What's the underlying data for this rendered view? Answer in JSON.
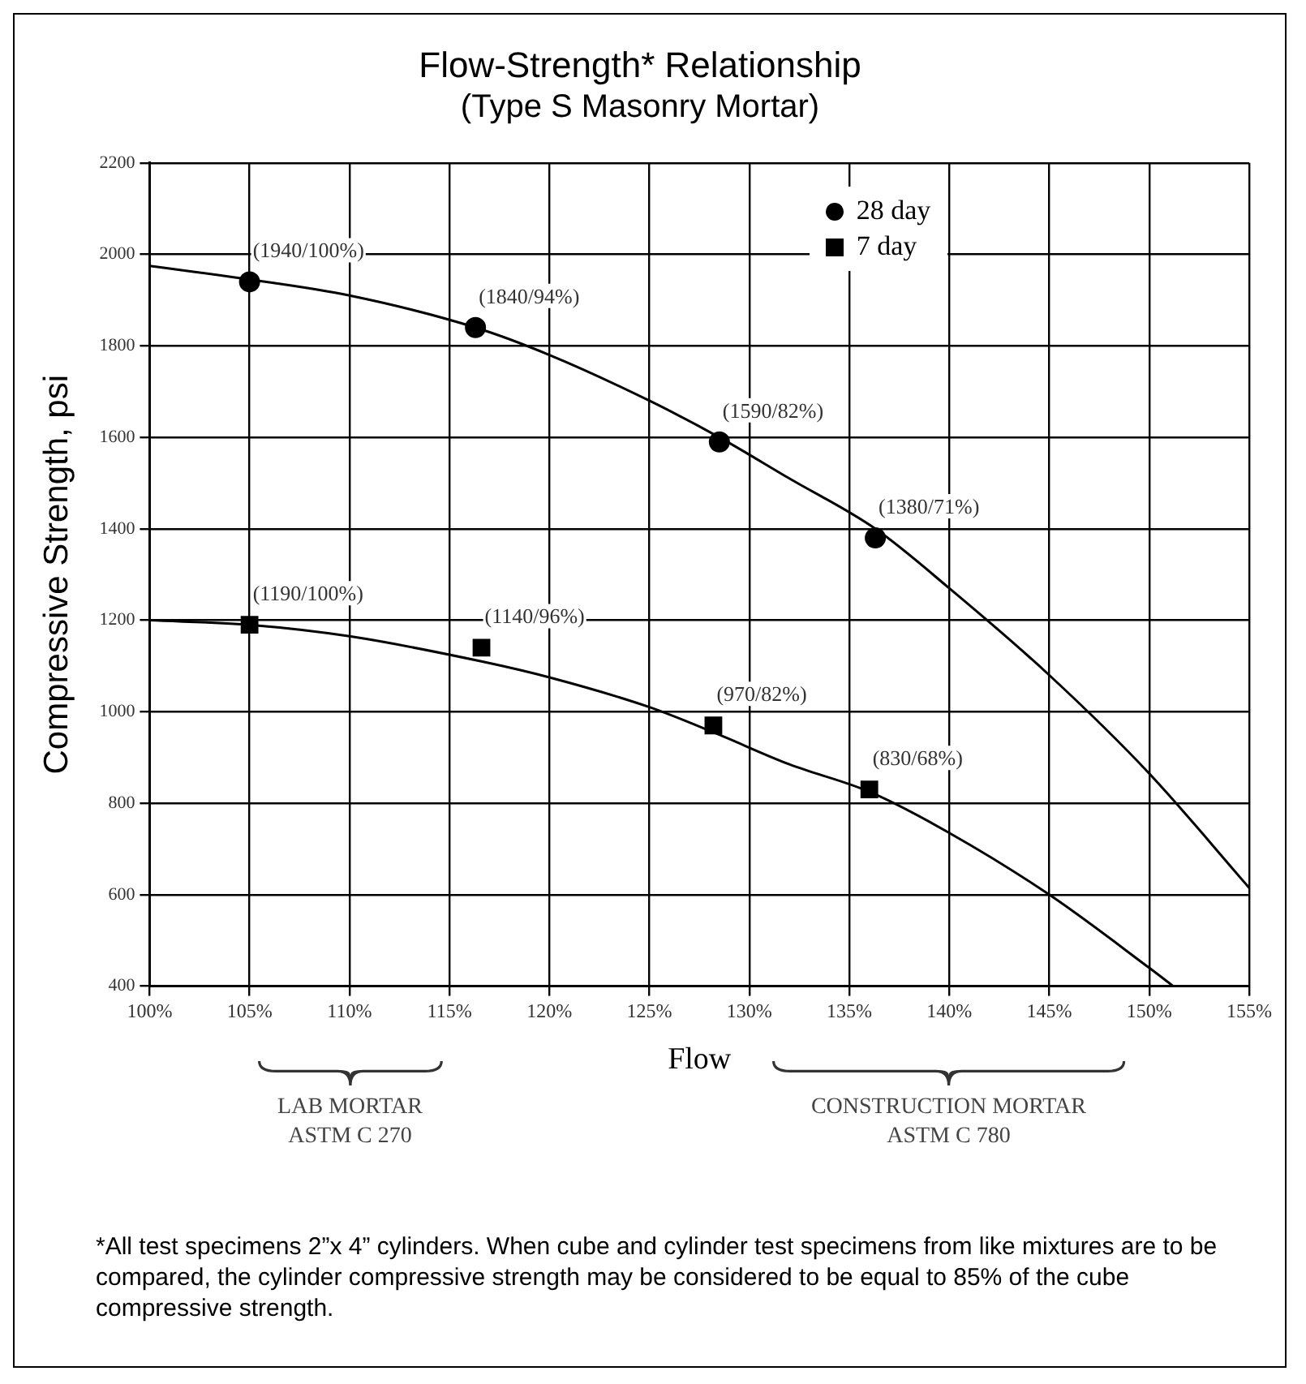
{
  "chart_data": {
    "type": "scatter",
    "title": "Flow-Strength* Relationship",
    "subtitle": "(Type S Masonry Mortar)",
    "xlabel": "Flow",
    "ylabel": "Compressive Strength, psi",
    "xlim": [
      100,
      155
    ],
    "xticks": [
      {
        "value": 100,
        "label": "100%"
      },
      {
        "value": 105,
        "label": "105%"
      },
      {
        "value": 110,
        "label": "110%"
      },
      {
        "value": 115,
        "label": "115%"
      },
      {
        "value": 120,
        "label": "120%"
      },
      {
        "value": 125,
        "label": "125%"
      },
      {
        "value": 130,
        "label": "130%"
      },
      {
        "value": 135,
        "label": "135%"
      },
      {
        "value": 140,
        "label": "140%"
      },
      {
        "value": 145,
        "label": "145%"
      },
      {
        "value": 150,
        "label": "150%"
      },
      {
        "value": 155,
        "label": "155%"
      }
    ],
    "ylim": [
      400,
      2200
    ],
    "yticks": [
      400,
      600,
      800,
      1000,
      1200,
      1400,
      1600,
      1800,
      2000,
      2200
    ],
    "grid": true,
    "legend": "top right",
    "series": [
      {
        "name": "28 day",
        "type": "scatter",
        "marker": "circle",
        "color": "#000000",
        "x": [
          105,
          116.3,
          128.5,
          136.3
        ],
        "values": [
          1940,
          1840,
          1590,
          1380
        ],
        "value_labels": [
          "(1940/100%)",
          "(1840/94%)",
          "(1590/82%)",
          "(1380/71%)"
        ]
      },
      {
        "name": "7 day",
        "type": "scatter",
        "marker": "square",
        "color": "#000000",
        "x": [
          105,
          116.6,
          128.2,
          136
        ],
        "values": [
          1190,
          1140,
          970,
          830
        ],
        "value_labels": [
          "(1190/100%)",
          "(1140/96%)",
          "(970/82%)",
          "(830/68%)"
        ]
      },
      {
        "type": "line",
        "marker": "none",
        "color": "#000000",
        "x": [
          100,
          105,
          110,
          116.3,
          120,
          125,
          128.5,
          132,
          136.3,
          140,
          145,
          150,
          155
        ],
        "values": [
          1975,
          1945,
          1910,
          1840,
          1780,
          1680,
          1600,
          1510,
          1400,
          1270,
          1080,
          865,
          615
        ]
      },
      {
        "type": "line",
        "marker": "none",
        "color": "#000000",
        "x": [
          100,
          105,
          110,
          116.6,
          120,
          125,
          128.2,
          132,
          136,
          140,
          145,
          150,
          151.2
        ],
        "values": [
          1200,
          1190,
          1165,
          1110,
          1075,
          1010,
          955,
          885,
          825,
          735,
          600,
          440,
          400
        ]
      }
    ],
    "annotations": [
      "LAB MORTAR\nASTM C 270",
      "CONSTRUCTION MORTAR\nASTM C 780",
      "*All test specimens 2”x 4” cylinders. When cube and cylinder test specimens from like mixtures are to be compared, the cylinder compressive strength may be considered to be equal to 85% of the cube compressive strength."
    ]
  }
}
